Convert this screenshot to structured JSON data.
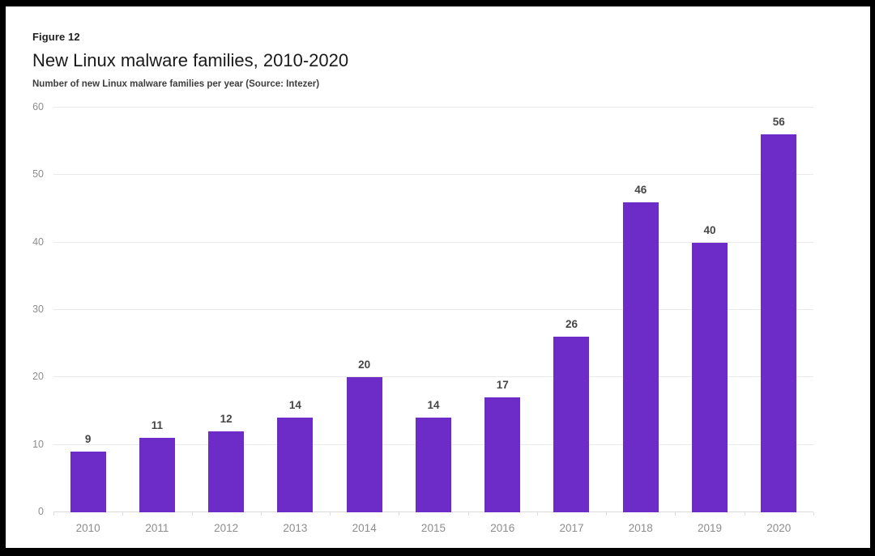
{
  "figure_label": "Figure 12",
  "title": "New Linux malware families, 2010-2020",
  "subtitle": "Number of new Linux malware families per year (Source: Intezer)",
  "chart_data": {
    "type": "bar",
    "categories": [
      "2010",
      "2011",
      "2012",
      "2013",
      "2014",
      "2015",
      "2016",
      "2017",
      "2018",
      "2019",
      "2020"
    ],
    "values": [
      9,
      11,
      12,
      14,
      20,
      14,
      17,
      26,
      46,
      40,
      56
    ],
    "title": "New Linux malware families, 2010-2020",
    "subtitle": "Number of new Linux malware families per year (Source: Intezer)",
    "xlabel": "",
    "ylabel": "",
    "ylim": [
      0,
      60
    ],
    "yticks": [
      0,
      10,
      20,
      30,
      40,
      50,
      60
    ],
    "grid": true,
    "legend": "none",
    "value_labels_shown": true,
    "bar_color": "#6d2cc8"
  },
  "colors": {
    "bar": "#6d2cc8",
    "gridline": "#e9e9e9",
    "axis_line": "#d9d9d9",
    "axis_text": "#8d8d8d",
    "value_text": "#454545",
    "title_text": "#1a1a1a",
    "frame": "#000000",
    "background": "#ffffff"
  }
}
